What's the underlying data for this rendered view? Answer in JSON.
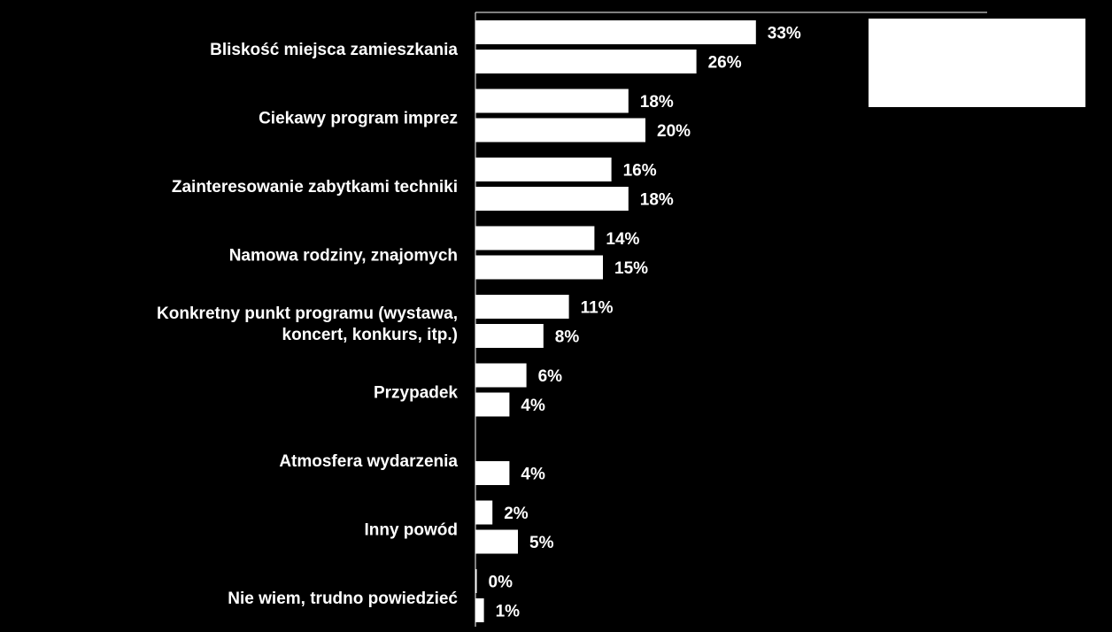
{
  "chart_data": {
    "type": "bar",
    "orientation": "horizontal",
    "categories": [
      [
        "Bliskość miejsca zamieszkania"
      ],
      [
        "Ciekawy program imprez"
      ],
      [
        "Zainteresowanie zabytkami techniki"
      ],
      [
        "Namowa rodziny, znajomych"
      ],
      [
        "Konkretny punkt programu (wystawa,",
        "koncert, konkurs, itp.)"
      ],
      [
        "Przypadek"
      ],
      [
        "Atmosfera wydarzenia"
      ],
      [
        "Inny powód"
      ],
      [
        "Nie wiem, trudno powiedzieć"
      ]
    ],
    "series": [
      {
        "values": [
          33,
          18,
          16,
          14,
          11,
          6,
          null,
          2,
          0
        ],
        "labels": [
          "33%",
          "18%",
          "16%",
          "14%",
          "11%",
          "6%",
          "",
          "2%",
          "0%"
        ]
      },
      {
        "values": [
          26,
          20,
          18,
          15,
          8,
          4,
          4,
          5,
          1
        ],
        "labels": [
          "26%",
          "20%",
          "18%",
          "15%",
          "8%",
          "4%",
          "4%",
          "5%",
          "1%"
        ]
      }
    ],
    "bar_color": "#ffffff",
    "background": "#000000",
    "xlim": [
      0,
      60
    ],
    "grid": false,
    "legend": {
      "placement": "top-right",
      "entries": []
    }
  }
}
